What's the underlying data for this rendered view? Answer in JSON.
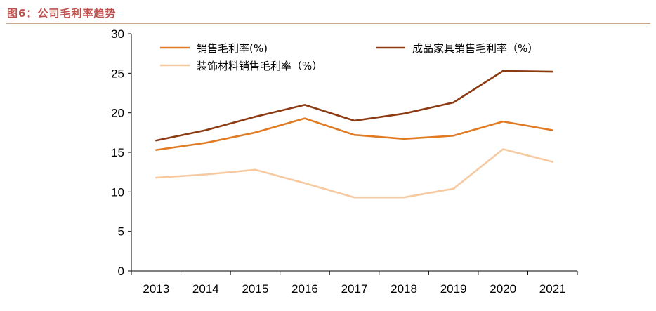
{
  "header": {
    "figure_title": "图6：公司毛利率趋势"
  },
  "chart_data": {
    "type": "line",
    "title": "图6：公司毛利率趋势",
    "xlabel": "",
    "ylabel": "",
    "x": [
      "2013",
      "2014",
      "2015",
      "2016",
      "2017",
      "2018",
      "2019",
      "2020",
      "2021"
    ],
    "ylim": [
      0,
      30
    ],
    "yticks": [
      0,
      5,
      10,
      15,
      20,
      25,
      30
    ],
    "grid": false,
    "legend_position": "top",
    "series": [
      {
        "name": "销售毛利率(%)",
        "color": "#e07b24",
        "values": [
          15.3,
          16.2,
          17.5,
          19.3,
          17.2,
          16.7,
          17.1,
          18.9,
          17.8
        ]
      },
      {
        "name": "成品家具销售毛利率（%）",
        "color": "#8b3a12",
        "values": [
          16.5,
          17.8,
          19.5,
          21.0,
          19.0,
          19.9,
          21.3,
          25.3,
          25.2
        ]
      },
      {
        "name": "装饰材料销售毛利率（%）",
        "color": "#f6c9a0",
        "values": [
          11.8,
          12.2,
          12.8,
          11.1,
          9.3,
          9.3,
          10.4,
          15.4,
          13.8
        ]
      }
    ]
  }
}
